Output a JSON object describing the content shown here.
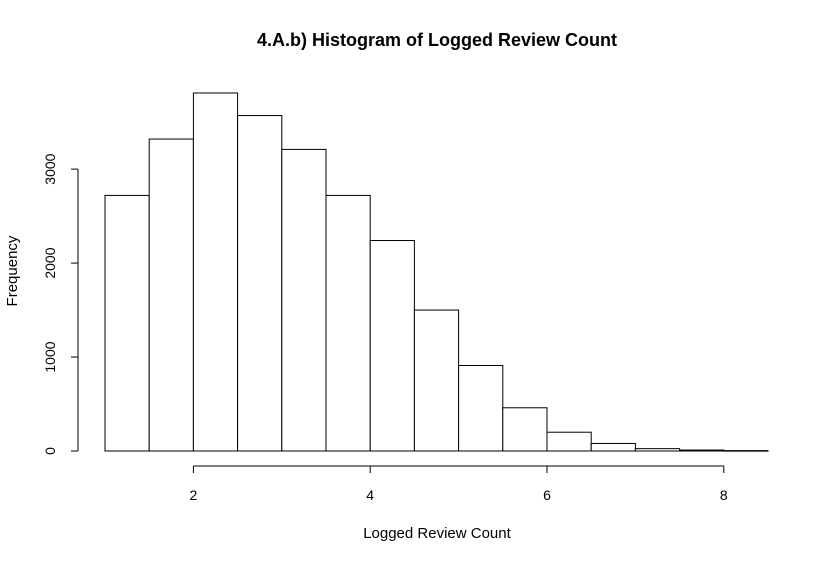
{
  "chart_data": {
    "type": "bar",
    "title": "4.A.b) Histogram of Logged Review Count",
    "xlabel": "Logged Review Count",
    "ylabel": "Frequency",
    "bins": [
      {
        "start": 1.0,
        "end": 1.5,
        "value": 2720
      },
      {
        "start": 1.5,
        "end": 2.0,
        "value": 3320
      },
      {
        "start": 2.0,
        "end": 2.5,
        "value": 3810
      },
      {
        "start": 2.5,
        "end": 3.0,
        "value": 3570
      },
      {
        "start": 3.0,
        "end": 3.5,
        "value": 3210
      },
      {
        "start": 3.5,
        "end": 4.0,
        "value": 2720
      },
      {
        "start": 4.0,
        "end": 4.5,
        "value": 2240
      },
      {
        "start": 4.5,
        "end": 5.0,
        "value": 1500
      },
      {
        "start": 5.0,
        "end": 5.5,
        "value": 910
      },
      {
        "start": 5.5,
        "end": 6.0,
        "value": 460
      },
      {
        "start": 6.0,
        "end": 6.5,
        "value": 200
      },
      {
        "start": 6.5,
        "end": 7.0,
        "value": 80
      },
      {
        "start": 7.0,
        "end": 7.5,
        "value": 25
      },
      {
        "start": 7.5,
        "end": 8.0,
        "value": 10
      },
      {
        "start": 8.0,
        "end": 8.5,
        "value": 4
      }
    ],
    "x_ticks": [
      {
        "value": 2,
        "label": "2"
      },
      {
        "value": 4,
        "label": "4"
      },
      {
        "value": 6,
        "label": "6"
      },
      {
        "value": 8,
        "label": "8"
      }
    ],
    "y_ticks": [
      {
        "value": 0,
        "label": "0"
      },
      {
        "value": 1000,
        "label": "1000"
      },
      {
        "value": 2000,
        "label": "2000"
      },
      {
        "value": 3000,
        "label": "3000"
      }
    ],
    "xlim": [
      1,
      8.5
    ],
    "ylim": [
      0,
      3810
    ],
    "grid": false
  }
}
